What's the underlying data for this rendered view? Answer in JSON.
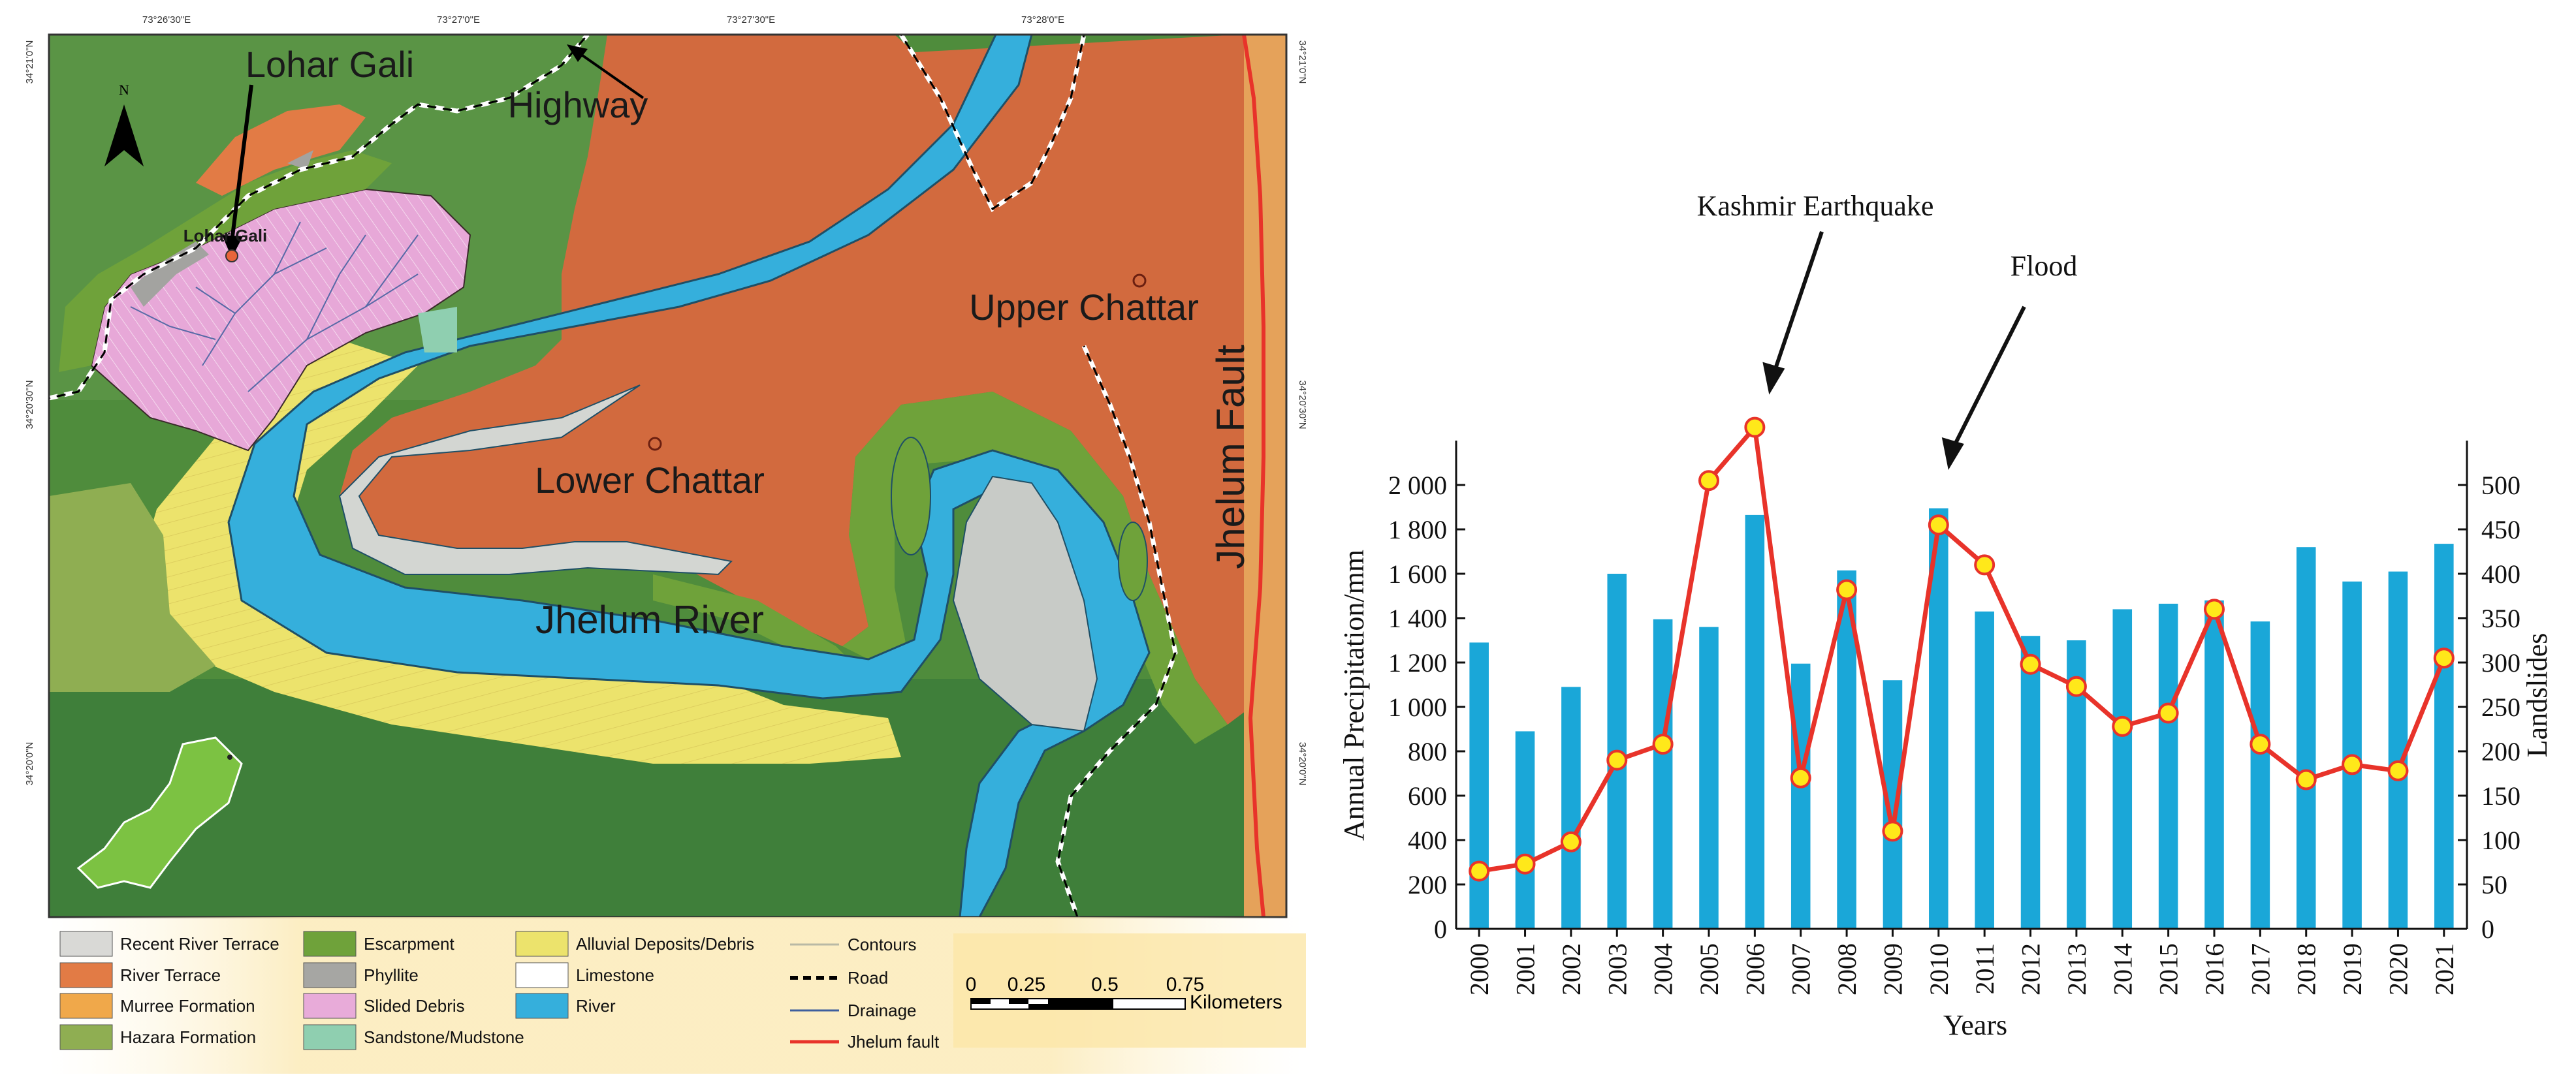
{
  "map": {
    "coords_top": [
      "73°26'30\"E",
      "73°27'0\"E",
      "73°27'30\"E",
      "73°28'0\"E"
    ],
    "coords_left": [
      "34°21'0\"N",
      "34°20'30\"N",
      "34°20'0\"N"
    ],
    "coords_right": [
      "34°21'0\"N",
      "34°20'30\"N",
      "34°20'0\"N"
    ],
    "north": "N",
    "labels": {
      "lohar_gali": "Lohar Gali",
      "lohar_gali_small": "Lohar Gali",
      "highway": "Highway",
      "upper_chattar": "Upper Chattar",
      "lower_chattar": "Lower Chattar",
      "jhelum_river": "Jhelum River",
      "jhelum_fault": "Jhelum Fault"
    },
    "colors": {
      "escarpment": "#6fa23a",
      "river_terrace": "#d86a3b",
      "murree": "#e8a04a",
      "hazara": "#8fae52",
      "recent_terrace": "#d3d6d2",
      "phyllite": "#a3a3a0",
      "slided_debris": "#e7a8d8",
      "sandstone": "#8fcfb0",
      "alluvial": "#ebe06a",
      "limestone": "#ffffff",
      "river": "#35afdc",
      "fault": "#e8332a"
    },
    "legend": [
      {
        "label": "Recent River Terrace",
        "color": "#d9d9d6"
      },
      {
        "label": "River Terrace",
        "color": "#e27b45"
      },
      {
        "label": "Murree Formation",
        "color": "#f0a84a"
      },
      {
        "label": "Hazara Formation",
        "color": "#8fae52"
      },
      {
        "label": "Escarpment",
        "color": "#6fa23a"
      },
      {
        "label": "Phyllite",
        "color": "#a6a6a3"
      },
      {
        "label": "Slided Debris",
        "color": "#e8abd9"
      },
      {
        "label": "Sandstone/Mudstone",
        "color": "#8fcfb0"
      },
      {
        "label": "Alluvial Deposits/Debris",
        "color": "#ece36c"
      },
      {
        "label": "Limestone",
        "color": "#ffffff"
      },
      {
        "label": "River",
        "color": "#35afdc"
      }
    ],
    "line_legend": [
      {
        "label": "Contours",
        "style": "contour"
      },
      {
        "label": "Road",
        "style": "road"
      },
      {
        "label": "Drainage",
        "style": "drainage"
      },
      {
        "label": "Jhelum fault",
        "style": "fault"
      }
    ],
    "scale": {
      "ticks": [
        "0",
        "0.25",
        "0.5",
        "0.75"
      ],
      "unit": "Kilometers"
    }
  },
  "chart_data": {
    "type": "bar",
    "categories": [
      "2000",
      "2001",
      "2002",
      "2003",
      "2004",
      "2005",
      "2006",
      "2007",
      "2008",
      "2009",
      "2010",
      "2011",
      "2012",
      "2013",
      "2014",
      "2015",
      "2016",
      "2017",
      "2018",
      "2019",
      "2020",
      "2021"
    ],
    "series": [
      {
        "values": [
          1290,
          890,
          1090,
          1600,
          1395,
          1360,
          1865,
          1195,
          1615,
          1120,
          1895,
          1430,
          1320,
          1300,
          1440,
          1465,
          1480,
          1385,
          1720,
          1565,
          1610,
          1735
        ],
        "axis": "left",
        "type": "bar",
        "color": "#1aa7d8"
      },
      {
        "values": [
          65,
          73,
          98,
          190,
          208,
          505,
          565,
          170,
          382,
          110,
          455,
          410,
          298,
          273,
          228,
          243,
          360,
          208,
          168,
          185,
          178,
          305
        ],
        "axis": "right",
        "type": "line",
        "color": "#e8332a"
      }
    ],
    "xlabel": "Years",
    "ylabel": "Annual Precipitation/mm",
    "ylabel_right": "Landslides",
    "ylim": [
      0,
      2200
    ],
    "ylim_right": [
      0,
      550
    ],
    "yticks": [
      "0",
      "200",
      "400",
      "600",
      "800",
      "1 000",
      "1 200",
      "1 400",
      "1 600",
      "1 800",
      "2 000"
    ],
    "yticks_right": [
      "0",
      "50",
      "100",
      "150",
      "200",
      "250",
      "300",
      "350",
      "400",
      "450",
      "500"
    ],
    "annotations": [
      {
        "text": "Kashmir Earthquake",
        "target_year": "2006"
      },
      {
        "text": "Flood",
        "target_year": "2010"
      }
    ],
    "grid": false,
    "legend": "none"
  }
}
